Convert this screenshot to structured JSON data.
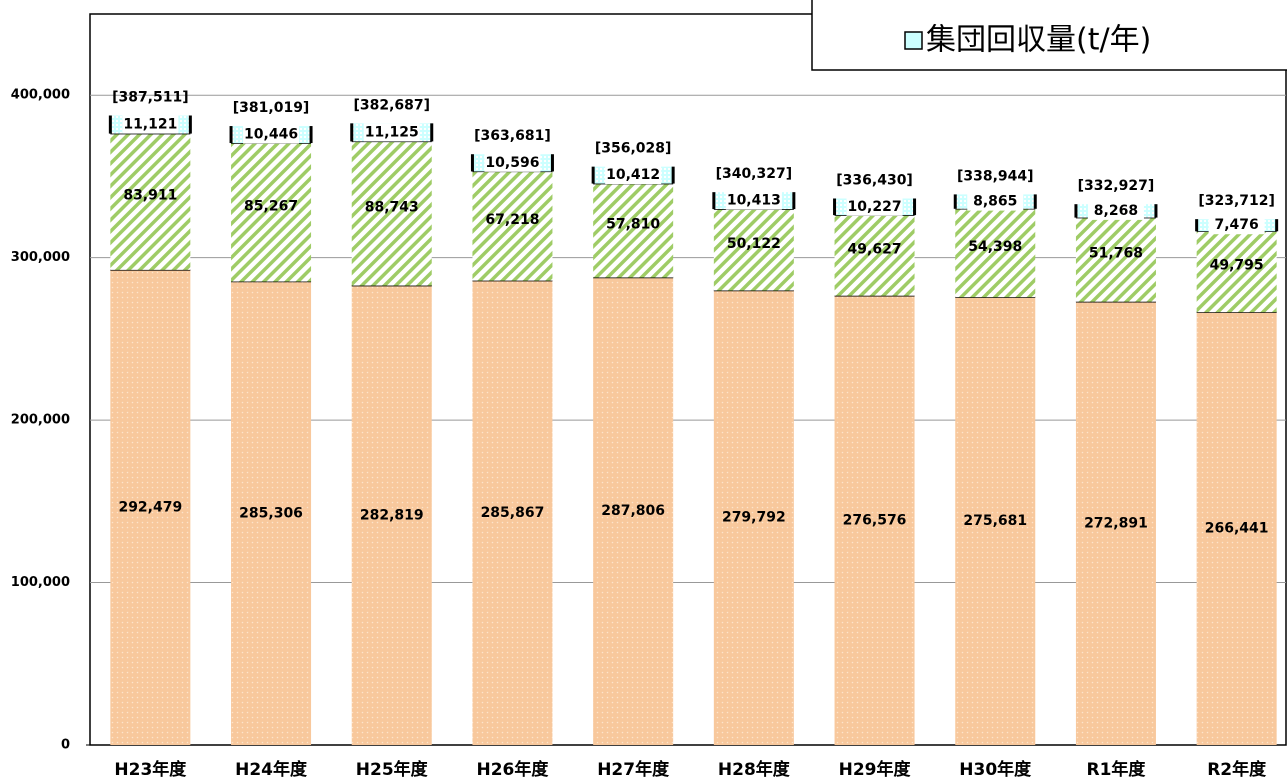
{
  "chart_data": {
    "type": "stacked_bar",
    "categories": [
      "H23年度",
      "H24年度",
      "H25年度",
      "H26年度",
      "H27年度",
      "H28年度",
      "H29年度",
      "H30年度",
      "R1年度",
      "R2年度"
    ],
    "series": [
      {
        "color": "#f8c89c",
        "values": [
          292479,
          285306,
          282819,
          285867,
          287806,
          279792,
          276576,
          275681,
          272891,
          266441
        ],
        "value_labels": [
          "292,479",
          "285,306",
          "282,819",
          "285,867",
          "287,806",
          "279,792",
          "276,576",
          "275,681",
          "272,891",
          "266,441"
        ]
      },
      {
        "color": "#9fcc66",
        "values": [
          83911,
          85267,
          88743,
          67218,
          57810,
          50122,
          49627,
          54398,
          51768,
          49795
        ],
        "value_labels": [
          "83,911",
          "85,267",
          "88,743",
          "67,218",
          "57,810",
          "50,122",
          "49,627",
          "54,398",
          "51,768",
          "49,795"
        ]
      },
      {
        "name": "集団回収量(t/年)",
        "color": "#ccffff",
        "values": [
          11121,
          10446,
          11125,
          10596,
          10412,
          10413,
          10227,
          8865,
          8268,
          7476
        ],
        "value_labels": [
          "11,121",
          "10,446",
          "11,125",
          "10,596",
          "10,412",
          "10,413",
          "10,227",
          "8,865",
          "8,268",
          "7,476"
        ]
      }
    ],
    "totals": {
      "values": [
        387511,
        381019,
        382687,
        363681,
        356028,
        340327,
        336430,
        338944,
        332927,
        323712
      ],
      "value_labels": [
        "[387,511]",
        "[381,019]",
        "[382,687]",
        "[363,681]",
        "[356,028]",
        "[340,327]",
        "[336,430]",
        "[338,944]",
        "[332,927]",
        "[323,712]"
      ]
    },
    "ylim": [
      0,
      450000
    ],
    "yticks": [
      0,
      {
        "value": 100000,
        "label": "100,000"
      },
      {
        "value": 200000,
        "label": "200,000"
      },
      {
        "value": 300000,
        "label": "300,000"
      },
      {
        "value": 400000,
        "label": "400,000"
      }
    ],
    "grid": true,
    "legend": "top-right"
  }
}
